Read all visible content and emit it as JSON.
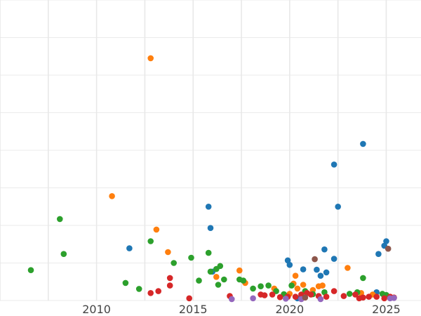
{
  "chart_data": {
    "type": "scatter",
    "title": "",
    "xlabel": "",
    "ylabel": "",
    "grid": true,
    "legend": "none",
    "xlim": [
      2005.0,
      2026.8
    ],
    "ylim": [
      0,
      8
    ],
    "x_ticks": [
      2010,
      2015,
      2020,
      2025
    ],
    "x_tick_labels": [
      "2010",
      "2015",
      "2020",
      "2025"
    ],
    "y_gridlines": [
      0,
      1,
      2,
      3,
      4,
      5,
      6,
      7,
      8
    ],
    "y_tick_labels_visible": false,
    "series": [
      {
        "color": "#1f77b4",
        "points": [
          [
            2011.7,
            1.39
          ],
          [
            2015.8,
            2.5
          ],
          [
            2015.9,
            1.93
          ],
          [
            2016.0,
            0.77
          ],
          [
            2019.9,
            1.07
          ],
          [
            2020.0,
            0.95
          ],
          [
            2020.7,
            0.83
          ],
          [
            2021.4,
            0.82
          ],
          [
            2021.6,
            0.66
          ],
          [
            2021.8,
            1.36
          ],
          [
            2021.9,
            0.75
          ],
          [
            2022.3,
            1.11
          ],
          [
            2022.3,
            3.62
          ],
          [
            2022.5,
            2.5
          ],
          [
            2023.8,
            4.17
          ],
          [
            2024.6,
            1.24
          ],
          [
            2024.9,
            1.46
          ],
          [
            2025.0,
            1.58
          ],
          [
            2024.5,
            0.22
          ],
          [
            2020.4,
            0.06
          ]
        ]
      },
      {
        "color": "#ff7f0e",
        "points": [
          [
            2010.8,
            2.78
          ],
          [
            2012.8,
            6.45
          ],
          [
            2013.1,
            1.89
          ],
          [
            2013.7,
            1.29
          ],
          [
            2016.2,
            0.63
          ],
          [
            2017.4,
            0.8
          ],
          [
            2017.7,
            0.47
          ],
          [
            2019.2,
            0.32
          ],
          [
            2020.2,
            0.45
          ],
          [
            2020.3,
            0.66
          ],
          [
            2020.4,
            0.32
          ],
          [
            2020.7,
            0.42
          ],
          [
            2021.2,
            0.28
          ],
          [
            2021.5,
            0.38
          ],
          [
            2021.7,
            0.4
          ],
          [
            2023.0,
            0.87
          ],
          [
            2023.7,
            0.2
          ],
          [
            2024.3,
            0.16
          ],
          [
            2020.0,
            0.18
          ]
        ]
      },
      {
        "color": "#2ca02c",
        "points": [
          [
            2006.6,
            0.81
          ],
          [
            2008.1,
            2.17
          ],
          [
            2008.3,
            1.24
          ],
          [
            2011.5,
            0.47
          ],
          [
            2012.2,
            0.31
          ],
          [
            2012.8,
            1.58
          ],
          [
            2014.0,
            1.0
          ],
          [
            2014.9,
            1.14
          ],
          [
            2015.3,
            0.53
          ],
          [
            2015.8,
            1.27
          ],
          [
            2015.9,
            0.77
          ],
          [
            2016.2,
            0.84
          ],
          [
            2016.3,
            0.42
          ],
          [
            2016.4,
            0.92
          ],
          [
            2016.6,
            0.56
          ],
          [
            2017.4,
            0.56
          ],
          [
            2017.6,
            0.53
          ],
          [
            2018.1,
            0.32
          ],
          [
            2018.5,
            0.38
          ],
          [
            2018.9,
            0.4
          ],
          [
            2019.3,
            0.25
          ],
          [
            2019.7,
            0.17
          ],
          [
            2020.1,
            0.4
          ],
          [
            2020.8,
            0.25
          ],
          [
            2021.2,
            0.17
          ],
          [
            2021.8,
            0.22
          ],
          [
            2023.1,
            0.18
          ],
          [
            2023.5,
            0.22
          ],
          [
            2023.8,
            0.6
          ],
          [
            2024.8,
            0.18
          ],
          [
            2025.0,
            0.15
          ]
        ]
      },
      {
        "color": "#d62728",
        "points": [
          [
            2012.8,
            0.2
          ],
          [
            2013.2,
            0.25
          ],
          [
            2013.8,
            0.6
          ],
          [
            2013.8,
            0.4
          ],
          [
            2014.8,
            0.06
          ],
          [
            2016.9,
            0.12
          ],
          [
            2018.5,
            0.16
          ],
          [
            2018.7,
            0.14
          ],
          [
            2019.1,
            0.16
          ],
          [
            2019.5,
            0.09
          ],
          [
            2019.9,
            0.1
          ],
          [
            2020.3,
            0.1
          ],
          [
            2020.6,
            0.16
          ],
          [
            2020.9,
            0.2
          ],
          [
            2021.1,
            0.16
          ],
          [
            2021.5,
            0.12
          ],
          [
            2021.9,
            0.1
          ],
          [
            2022.3,
            0.25
          ],
          [
            2022.8,
            0.12
          ],
          [
            2023.4,
            0.16
          ],
          [
            2023.8,
            0.08
          ],
          [
            2024.1,
            0.1
          ],
          [
            2024.5,
            0.1
          ],
          [
            2024.9,
            0.06
          ],
          [
            2025.2,
            0.1
          ],
          [
            2025.4,
            0.08
          ],
          [
            2023.6,
            0.06
          ]
        ]
      },
      {
        "color": "#9467bd",
        "points": [
          [
            2017.0,
            0.04
          ],
          [
            2018.1,
            0.06
          ],
          [
            2019.8,
            0.05
          ],
          [
            2020.6,
            0.04
          ],
          [
            2021.6,
            0.04
          ],
          [
            2025.2,
            0.06
          ],
          [
            2025.4,
            0.07
          ]
        ]
      },
      {
        "color": "#8c564b",
        "points": [
          [
            2021.3,
            1.1
          ],
          [
            2020.8,
            0.08
          ],
          [
            2025.1,
            1.38
          ]
        ]
      }
    ]
  }
}
